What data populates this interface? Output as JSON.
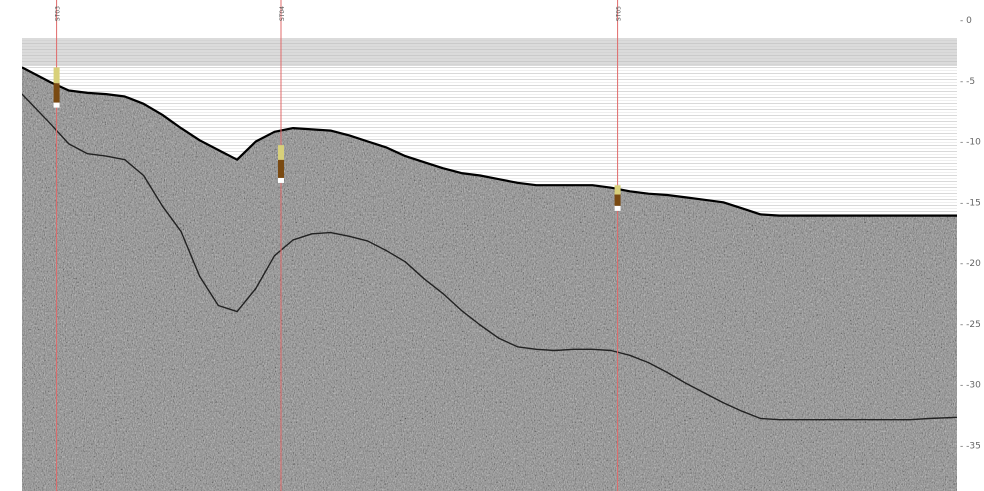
{
  "chart_data": {
    "type": "line",
    "title": "",
    "xlabel": "",
    "ylabel": "",
    "y_axis": {
      "position": "right",
      "ticks": [
        0,
        -5,
        -10,
        -15,
        -20,
        -25,
        -30,
        -35
      ],
      "tick_labels": [
        "- 0",
        "- -5",
        "- -10",
        "- -15",
        "- -20",
        "- -25",
        "- -30",
        "- -35"
      ],
      "range": [
        0,
        -37.5
      ]
    },
    "x_range": [
      0,
      100
    ],
    "grid": false,
    "legend": "none",
    "background": "sub-bottom acoustic profile (grayscale noise texture)",
    "series": [
      {
        "key": "seabed",
        "color": "#000000",
        "x": [
          0,
          3,
          5,
          7,
          9,
          11,
          13,
          15,
          17,
          19,
          21,
          23,
          25,
          27,
          29,
          31,
          33,
          35,
          37,
          39,
          41,
          43,
          45,
          47,
          49,
          51,
          53,
          55,
          57,
          59,
          61,
          63,
          65,
          67,
          69,
          71,
          73,
          75,
          77,
          79,
          81,
          83,
          85,
          87,
          89,
          91,
          93,
          95,
          97,
          100
        ],
        "y": [
          -3.9,
          -5.1,
          -5.8,
          -6.0,
          -6.1,
          -6.3,
          -6.9,
          -7.8,
          -8.9,
          -9.9,
          -10.7,
          -11.5,
          -10.0,
          -9.2,
          -8.9,
          -9.0,
          -9.1,
          -9.5,
          -10.0,
          -10.5,
          -11.2,
          -11.7,
          -12.2,
          -12.6,
          -12.8,
          -13.1,
          -13.4,
          -13.6,
          -13.6,
          -13.6,
          -13.6,
          -13.8,
          -14.1,
          -14.3,
          -14.4,
          -14.6,
          -14.8,
          -15.0,
          -15.5,
          -16.0,
          -16.1,
          -16.1,
          -16.1,
          -16.1,
          -16.1,
          -16.1,
          -16.1,
          -16.1,
          -16.1,
          -16.1
        ]
      },
      {
        "key": "subsurface-reflector",
        "color": "#222222",
        "x": [
          0,
          3,
          5,
          7,
          9,
          11,
          13,
          15,
          17,
          19,
          21,
          23,
          25,
          27,
          29,
          31,
          33,
          35,
          37,
          39,
          41,
          43,
          45,
          47,
          49,
          51,
          53,
          55,
          57,
          59,
          61,
          63,
          65,
          67,
          69,
          71,
          73,
          75,
          77,
          79,
          81,
          83,
          85,
          87,
          89,
          91,
          93,
          95,
          97,
          100
        ],
        "y": [
          -6.1,
          -8.5,
          -10.2,
          -11.0,
          -11.2,
          -11.5,
          -12.8,
          -15.3,
          -17.4,
          -21.1,
          -23.5,
          -24.0,
          -22.1,
          -19.4,
          -18.1,
          -17.6,
          -17.5,
          -17.8,
          -18.2,
          -19.0,
          -19.9,
          -21.3,
          -22.5,
          -23.9,
          -25.1,
          -26.2,
          -26.9,
          -27.1,
          -27.2,
          -27.1,
          -27.1,
          -27.2,
          -27.6,
          -28.2,
          -29.0,
          -29.9,
          -30.7,
          -31.5,
          -32.2,
          -32.8,
          -32.9,
          -32.9,
          -32.9,
          -32.9,
          -32.9,
          -32.9,
          -32.9,
          -32.9,
          -32.8,
          -32.7
        ]
      }
    ],
    "sample_lines": [
      {
        "label": "ST03",
        "x": 3.7,
        "top": -3.9,
        "bottom": -6.8
      },
      {
        "label": "ST04",
        "x": 27.7,
        "top": -10.3,
        "bottom": -13.0
      },
      {
        "label": "ST05",
        "x": 63.7,
        "top": -13.6,
        "bottom": -15.3
      }
    ],
    "colors": {
      "sample_line": "#e06a6a",
      "core_top": "#d8d07a",
      "core_bottom": "#7a4a12",
      "seabed_line": "#000000"
    }
  }
}
